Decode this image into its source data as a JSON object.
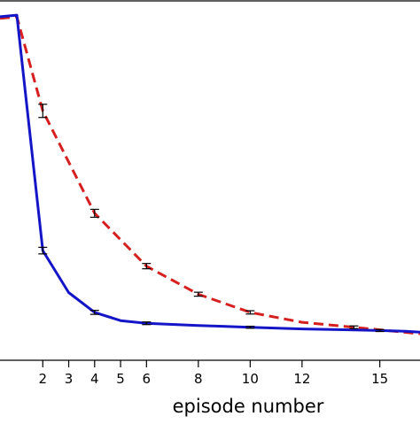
{
  "chart_data": {
    "type": "line",
    "xlabel": "episode number",
    "ylabel": "",
    "title": "",
    "xlim": [
      0.35,
      16.55
    ],
    "ylim": [
      -0.04,
      1.04
    ],
    "xticks": [
      2,
      3,
      4,
      5,
      6,
      8,
      10,
      12,
      15
    ],
    "grid": false,
    "series": [
      {
        "color": "#d62020",
        "style": "dashed",
        "x": [
          0.35,
          1,
          2,
          4,
          6,
          8,
          10,
          12,
          14,
          16.55
        ],
        "y": [
          0.995,
          1.0,
          0.715,
          0.405,
          0.245,
          0.16,
          0.105,
          0.075,
          0.06,
          0.04
        ],
        "error_bars": [
          {
            "x": 2,
            "y": 0.715,
            "err": 0.02
          },
          {
            "x": 4,
            "y": 0.405,
            "err": 0.012
          },
          {
            "x": 6,
            "y": 0.245,
            "err": 0.008
          },
          {
            "x": 8,
            "y": 0.16,
            "err": 0.006
          },
          {
            "x": 10,
            "y": 0.105,
            "err": 0.005
          },
          {
            "x": 14,
            "y": 0.06,
            "err": 0.004
          }
        ]
      },
      {
        "color": "#1515c8",
        "style": "solid",
        "x": [
          0.35,
          1,
          2,
          3,
          4,
          5,
          6,
          8,
          10,
          12,
          14,
          15,
          16,
          16.55
        ],
        "y": [
          1.0,
          1.005,
          0.292,
          0.165,
          0.105,
          0.08,
          0.072,
          0.065,
          0.06,
          0.055,
          0.052,
          0.05,
          0.048,
          0.045
        ],
        "error_bars": [
          {
            "x": 2,
            "y": 0.292,
            "err": 0.01
          },
          {
            "x": 4,
            "y": 0.105,
            "err": 0.006
          },
          {
            "x": 6,
            "y": 0.072,
            "err": 0.004
          },
          {
            "x": 10,
            "y": 0.06,
            "err": 0.003
          },
          {
            "x": 15,
            "y": 0.05,
            "err": 0.003
          }
        ]
      }
    ]
  }
}
